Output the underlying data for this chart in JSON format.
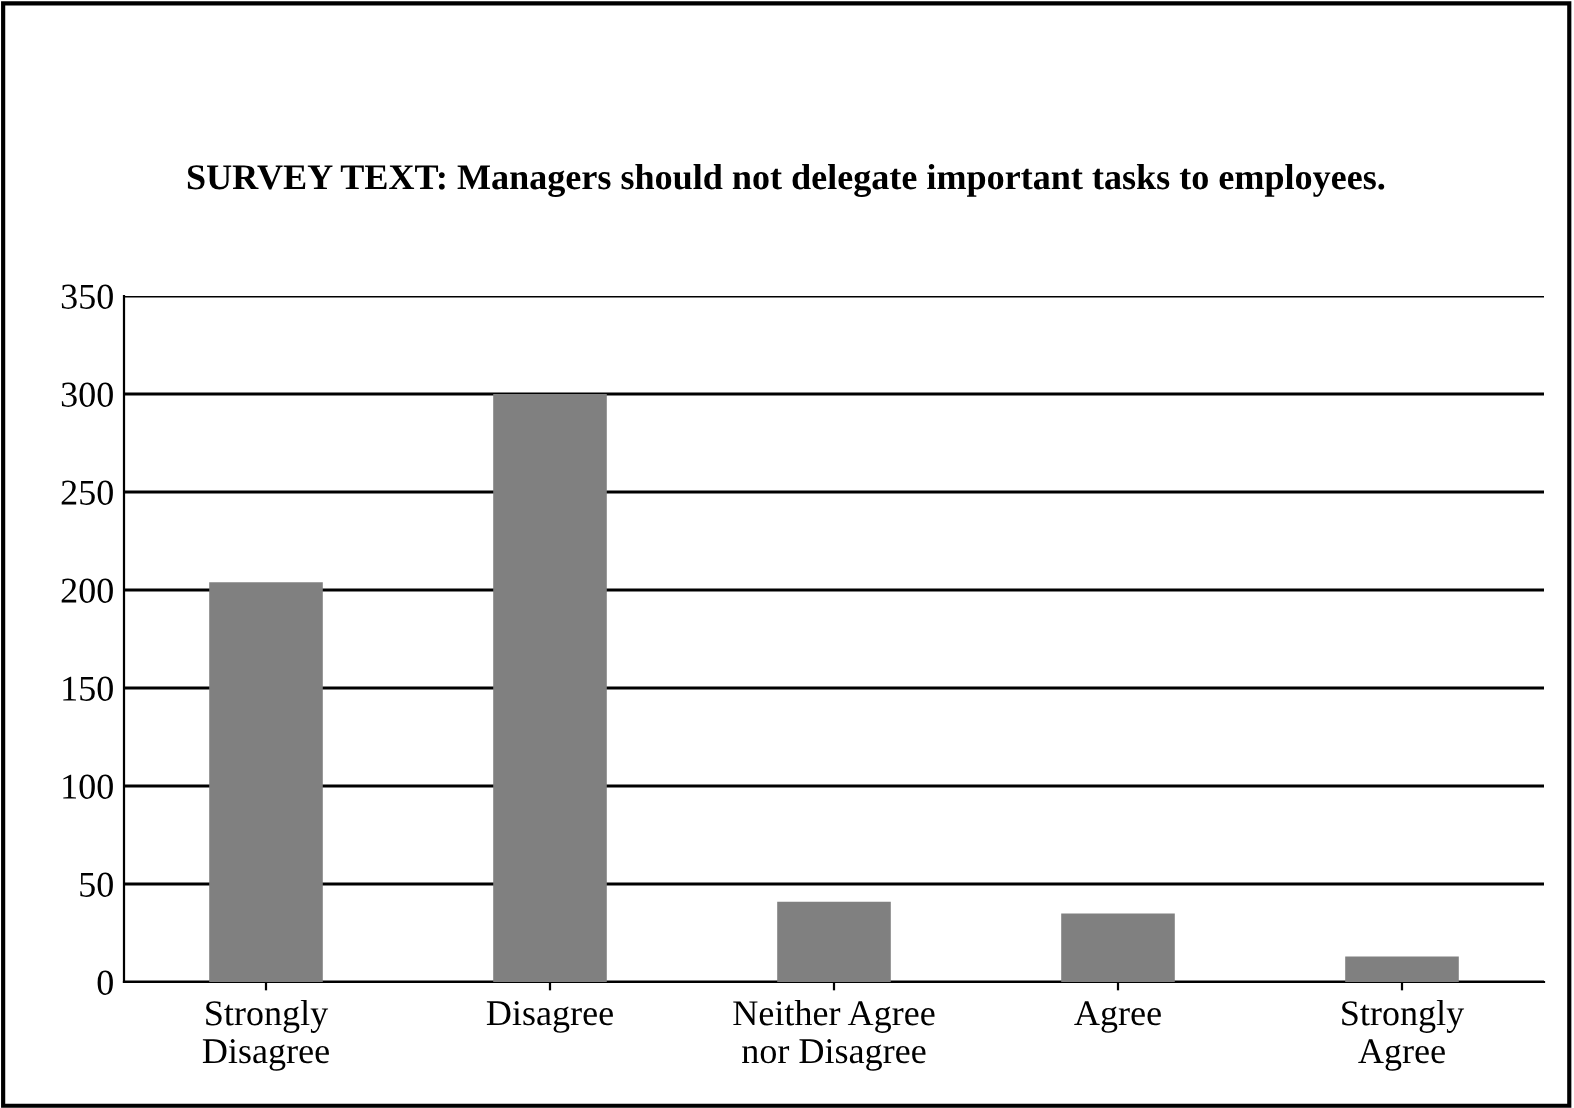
{
  "chart_data": {
    "type": "bar",
    "title": "SURVEY TEXT: Managers should not delegate important tasks to employees.",
    "categories": [
      "Strongly\nDisagree",
      "Disagree",
      "Neither Agree\nnor Disagree",
      "Agree",
      "Strongly\nAgree"
    ],
    "values": [
      204,
      300,
      41,
      35,
      13
    ],
    "color": "#808080",
    "ylim": [
      0,
      350
    ],
    "yticks": [
      0,
      50,
      100,
      150,
      200,
      250,
      300,
      350
    ],
    "grid": "y",
    "legend": false
  }
}
